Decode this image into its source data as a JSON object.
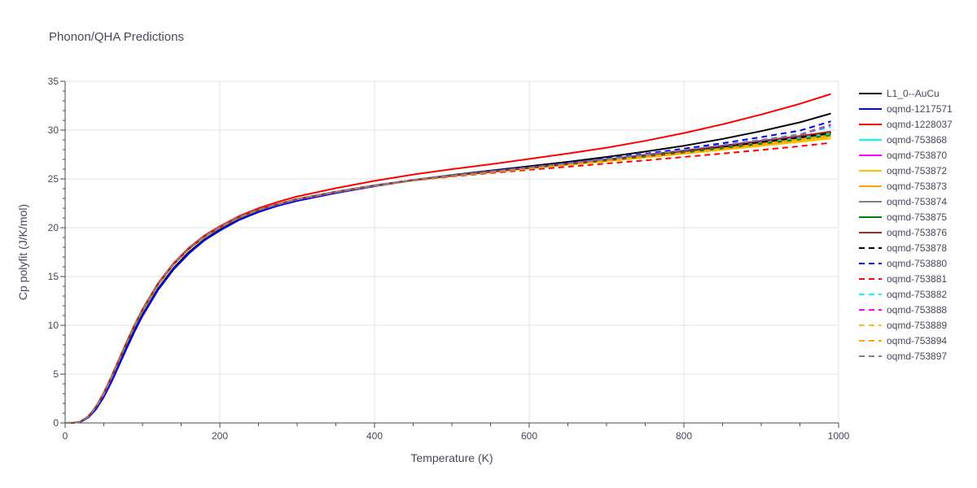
{
  "chart_data": {
    "type": "line",
    "title": "Phonon/QHA Predictions",
    "xlabel": "Temperature (K)",
    "ylabel": "Cp polyfit (J/K/mol)",
    "xlim": [
      0,
      1000
    ],
    "ylim": [
      0,
      35
    ],
    "x_ticks": [
      0,
      200,
      400,
      600,
      800,
      1000
    ],
    "y_ticks": [
      0,
      5,
      10,
      15,
      20,
      25,
      30,
      35
    ],
    "grid": true,
    "legend_position": "right",
    "x": [
      0,
      10,
      20,
      30,
      40,
      50,
      60,
      70,
      80,
      90,
      100,
      120,
      140,
      160,
      180,
      200,
      225,
      250,
      275,
      300,
      350,
      400,
      450,
      500,
      550,
      600,
      650,
      700,
      750,
      800,
      850,
      900,
      950,
      990
    ],
    "series": [
      {
        "name": "L1_0--AuCu",
        "color": "#000000",
        "dash": "solid",
        "values": [
          0,
          0.01,
          0.12,
          0.58,
          1.45,
          2.75,
          4.35,
          6.1,
          7.85,
          9.55,
          11.1,
          13.75,
          15.85,
          17.5,
          18.8,
          19.8,
          20.85,
          21.65,
          22.3,
          22.8,
          23.6,
          24.3,
          24.9,
          25.4,
          25.85,
          26.3,
          26.75,
          27.25,
          27.8,
          28.4,
          29.1,
          29.9,
          30.8,
          31.7
        ]
      },
      {
        "name": "oqmd-1217571",
        "color": "#0000ff",
        "dash": "solid",
        "values": [
          0,
          0.01,
          0.11,
          0.55,
          1.4,
          2.65,
          4.2,
          5.95,
          7.7,
          9.4,
          10.95,
          13.6,
          15.7,
          17.35,
          18.7,
          19.7,
          20.8,
          21.6,
          22.25,
          22.75,
          23.55,
          24.25,
          24.85,
          25.35,
          25.8,
          26.2,
          26.6,
          27.0,
          27.45,
          27.9,
          28.4,
          28.9,
          29.4,
          29.8
        ]
      },
      {
        "name": "oqmd-1228037",
        "color": "#ff0000",
        "dash": "solid",
        "values": [
          0,
          0.01,
          0.15,
          0.7,
          1.7,
          3.1,
          4.8,
          6.6,
          8.4,
          10.1,
          11.65,
          14.3,
          16.35,
          17.95,
          19.2,
          20.15,
          21.2,
          22.0,
          22.65,
          23.2,
          24.05,
          24.8,
          25.45,
          26.0,
          26.5,
          27.05,
          27.6,
          28.2,
          28.9,
          29.7,
          30.6,
          31.6,
          32.7,
          33.7
        ]
      },
      {
        "name": "oqmd-753868",
        "color": "#00ffff",
        "dash": "solid",
        "values": [
          0,
          0.01,
          0.14,
          0.68,
          1.65,
          3.0,
          4.7,
          6.5,
          8.3,
          10.0,
          11.55,
          14.2,
          16.25,
          17.85,
          19.1,
          20.05,
          21.1,
          21.85,
          22.45,
          22.95,
          23.7,
          24.35,
          24.9,
          25.35,
          25.75,
          26.15,
          26.55,
          26.95,
          27.35,
          27.8,
          28.25,
          28.7,
          29.2,
          29.6
        ]
      },
      {
        "name": "oqmd-753870",
        "color": "#ff00ff",
        "dash": "solid",
        "values": [
          0,
          0.01,
          0.14,
          0.67,
          1.64,
          2.98,
          4.68,
          6.48,
          8.28,
          9.98,
          11.53,
          14.18,
          16.23,
          17.83,
          19.08,
          20.03,
          21.08,
          21.83,
          22.43,
          22.93,
          23.68,
          24.33,
          24.88,
          25.33,
          25.73,
          26.12,
          26.5,
          26.9,
          27.3,
          27.72,
          28.15,
          28.6,
          29.05,
          29.45
        ]
      },
      {
        "name": "oqmd-753872",
        "color": "#ffbf00",
        "dash": "solid",
        "values": [
          0,
          0.01,
          0.14,
          0.66,
          1.63,
          2.97,
          4.66,
          6.46,
          8.26,
          9.96,
          11.51,
          14.16,
          16.21,
          17.81,
          19.06,
          20.01,
          21.06,
          21.81,
          22.41,
          22.91,
          23.66,
          24.3,
          24.85,
          25.3,
          25.7,
          26.08,
          26.45,
          26.82,
          27.2,
          27.58,
          27.98,
          28.38,
          28.8,
          29.15
        ]
      },
      {
        "name": "oqmd-753873",
        "color": "#ffa500",
        "dash": "solid",
        "values": [
          0,
          0.01,
          0.14,
          0.66,
          1.63,
          2.97,
          4.66,
          6.46,
          8.26,
          9.96,
          11.51,
          14.16,
          16.21,
          17.81,
          19.06,
          20.01,
          21.06,
          21.81,
          22.41,
          22.91,
          23.66,
          24.31,
          24.86,
          25.31,
          25.71,
          26.1,
          26.48,
          26.86,
          27.25,
          27.65,
          28.07,
          28.5,
          28.95,
          29.35
        ]
      },
      {
        "name": "oqmd-753874",
        "color": "#808080",
        "dash": "solid",
        "values": [
          0,
          0.01,
          0.14,
          0.67,
          1.64,
          2.98,
          4.68,
          6.48,
          8.28,
          9.98,
          11.53,
          14.18,
          16.23,
          17.83,
          19.08,
          20.03,
          21.08,
          21.83,
          22.43,
          22.93,
          23.68,
          24.33,
          24.88,
          25.33,
          25.74,
          26.14,
          26.54,
          26.95,
          27.38,
          27.83,
          28.3,
          28.8,
          29.3,
          29.75
        ]
      },
      {
        "name": "oqmd-753875",
        "color": "#008000",
        "dash": "solid",
        "values": [
          0,
          0.01,
          0.14,
          0.67,
          1.64,
          2.98,
          4.68,
          6.48,
          8.28,
          9.98,
          11.53,
          14.18,
          16.23,
          17.83,
          19.08,
          20.03,
          21.08,
          21.83,
          22.43,
          22.93,
          23.68,
          24.33,
          24.88,
          25.33,
          25.73,
          26.12,
          26.51,
          26.9,
          27.3,
          27.72,
          28.15,
          28.6,
          29.05,
          29.5
        ]
      },
      {
        "name": "oqmd-753876",
        "color": "#a52a2a",
        "dash": "solid",
        "values": [
          0,
          0.01,
          0.14,
          0.67,
          1.64,
          2.98,
          4.68,
          6.48,
          8.28,
          9.98,
          11.53,
          14.18,
          16.23,
          17.83,
          19.08,
          20.03,
          21.08,
          21.83,
          22.43,
          22.93,
          23.68,
          24.33,
          24.88,
          25.33,
          25.74,
          26.14,
          26.55,
          26.97,
          27.4,
          27.86,
          28.35,
          28.87,
          29.4,
          29.85
        ]
      },
      {
        "name": "oqmd-753878",
        "color": "#000000",
        "dash": "dash",
        "values": [
          0,
          0.01,
          0.14,
          0.67,
          1.64,
          2.98,
          4.68,
          6.48,
          8.28,
          9.98,
          11.53,
          14.18,
          16.23,
          17.83,
          19.08,
          20.03,
          21.08,
          21.83,
          22.43,
          22.93,
          23.68,
          24.33,
          24.88,
          25.33,
          25.74,
          26.14,
          26.54,
          26.95,
          27.38,
          27.82,
          28.28,
          28.77,
          29.25,
          29.7
        ]
      },
      {
        "name": "oqmd-753880",
        "color": "#0000ff",
        "dash": "dash",
        "values": [
          0,
          0.01,
          0.14,
          0.67,
          1.64,
          2.98,
          4.68,
          6.48,
          8.28,
          9.98,
          11.53,
          14.18,
          16.23,
          17.83,
          19.08,
          20.03,
          21.08,
          21.83,
          22.43,
          22.93,
          23.68,
          24.33,
          24.88,
          25.35,
          25.78,
          26.2,
          26.64,
          27.1,
          27.58,
          28.1,
          28.66,
          29.28,
          29.95,
          30.9
        ]
      },
      {
        "name": "oqmd-753881",
        "color": "#ff0000",
        "dash": "dash",
        "values": [
          0,
          0.01,
          0.14,
          0.67,
          1.64,
          2.98,
          4.68,
          6.48,
          8.28,
          9.98,
          11.53,
          14.18,
          16.23,
          17.83,
          19.08,
          20.03,
          21.08,
          21.83,
          22.43,
          22.93,
          23.68,
          24.3,
          24.83,
          25.25,
          25.6,
          25.93,
          26.25,
          26.58,
          26.9,
          27.25,
          27.6,
          27.97,
          28.35,
          28.7
        ]
      },
      {
        "name": "oqmd-753882",
        "color": "#00ffff",
        "dash": "dash",
        "values": [
          0,
          0.01,
          0.14,
          0.67,
          1.64,
          2.98,
          4.68,
          6.48,
          8.28,
          9.98,
          11.53,
          14.18,
          16.23,
          17.83,
          19.08,
          20.03,
          21.08,
          21.83,
          22.43,
          22.93,
          23.68,
          24.33,
          24.88,
          25.34,
          25.76,
          26.17,
          26.59,
          27.03,
          27.48,
          27.96,
          28.47,
          29.02,
          29.6,
          30.3
        ]
      },
      {
        "name": "oqmd-753888",
        "color": "#ff00ff",
        "dash": "dash",
        "values": [
          0,
          0.01,
          0.14,
          0.67,
          1.64,
          2.98,
          4.68,
          6.48,
          8.28,
          9.98,
          11.53,
          14.18,
          16.23,
          17.83,
          19.08,
          20.03,
          21.08,
          21.83,
          22.43,
          22.93,
          23.68,
          24.33,
          24.88,
          25.34,
          25.76,
          26.17,
          26.58,
          27.01,
          27.46,
          27.93,
          28.43,
          28.96,
          29.5,
          30.5
        ]
      },
      {
        "name": "oqmd-753889",
        "color": "#ffbf00",
        "dash": "dash",
        "values": [
          0,
          0.01,
          0.14,
          0.67,
          1.64,
          2.98,
          4.68,
          6.48,
          8.28,
          9.98,
          11.53,
          14.18,
          16.23,
          17.83,
          19.08,
          20.03,
          21.08,
          21.83,
          22.43,
          22.93,
          23.68,
          24.32,
          24.86,
          25.3,
          25.69,
          26.06,
          26.43,
          26.81,
          27.19,
          27.59,
          28.0,
          28.44,
          28.9,
          29.3
        ]
      },
      {
        "name": "oqmd-753894",
        "color": "#ffa500",
        "dash": "dash",
        "values": [
          0,
          0.01,
          0.14,
          0.67,
          1.64,
          2.98,
          4.68,
          6.48,
          8.28,
          9.98,
          11.53,
          14.18,
          16.23,
          17.83,
          19.08,
          20.03,
          21.08,
          21.83,
          22.43,
          22.93,
          23.68,
          24.32,
          24.87,
          25.32,
          25.72,
          26.1,
          26.49,
          26.88,
          27.28,
          27.7,
          28.13,
          28.59,
          29.05,
          29.45
        ]
      },
      {
        "name": "oqmd-753897",
        "color": "#808080",
        "dash": "dash",
        "values": [
          0,
          0.01,
          0.14,
          0.67,
          1.64,
          2.98,
          4.68,
          6.48,
          8.28,
          9.98,
          11.53,
          14.18,
          16.23,
          17.83,
          19.08,
          20.03,
          21.08,
          21.83,
          22.43,
          22.93,
          23.68,
          24.33,
          24.88,
          25.34,
          25.76,
          26.17,
          26.59,
          27.02,
          27.47,
          27.95,
          28.46,
          29.0,
          29.55,
          30.6
        ]
      }
    ]
  }
}
